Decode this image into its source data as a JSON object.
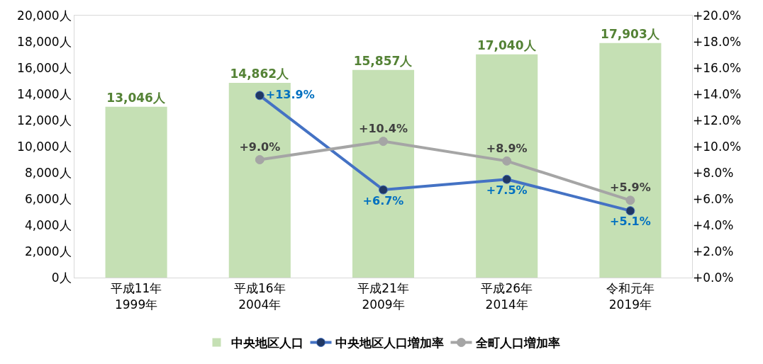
{
  "chart_data": {
    "type": "bar",
    "categories": [
      "平成11年\n1999年",
      "平成16年\n2004年",
      "平成21年\n2009年",
      "平成26年\n2014年",
      "令和元年\n2019年"
    ],
    "series": [
      {
        "name": "中央地区人口",
        "color": "#c5e0b4",
        "values": [
          13046,
          14862,
          15857,
          17040,
          17903
        ],
        "value_labels": [
          "13,046人",
          "14,862人",
          "15,857人",
          "17,040人",
          "17,903人"
        ]
      },
      {
        "type": "line",
        "name": "中央地区人口増加率",
        "color": "#4472c4",
        "axis": "y2",
        "values": [
          null,
          13.9,
          6.7,
          7.5,
          5.1
        ],
        "value_labels": [
          null,
          "+13.9%",
          "+6.7%",
          "+7.5%",
          "+5.1%"
        ]
      },
      {
        "type": "line",
        "name": "全町人口増加率",
        "color": "#a5a5a5",
        "axis": "y2",
        "values": [
          null,
          9.0,
          10.4,
          8.9,
          5.9
        ],
        "value_labels": [
          null,
          "+9.0%",
          "+10.4%",
          "+8.9%",
          "+5.9%"
        ]
      }
    ],
    "ylim": [
      0,
      20000
    ],
    "yticks": [
      {
        "value": 0,
        "label": "0人"
      },
      {
        "value": 2000,
        "label": "2,000人"
      },
      {
        "value": 4000,
        "label": "4,000人"
      },
      {
        "value": 6000,
        "label": "6,000人"
      },
      {
        "value": 8000,
        "label": "8,000人"
      },
      {
        "value": 10000,
        "label": "10,000人"
      },
      {
        "value": 12000,
        "label": "12,000人"
      },
      {
        "value": 14000,
        "label": "14,000人"
      },
      {
        "value": 16000,
        "label": "16,000人"
      },
      {
        "value": 18000,
        "label": "18,000人"
      },
      {
        "value": 20000,
        "label": "20,000人"
      }
    ],
    "y2lim": [
      0,
      20
    ],
    "y2ticks": [
      {
        "value": 0,
        "label": "+0.0%"
      },
      {
        "value": 2,
        "label": "+2.0%"
      },
      {
        "value": 4,
        "label": "+4.0%"
      },
      {
        "value": 6,
        "label": "+6.0%"
      },
      {
        "value": 8,
        "label": "+8.0%"
      },
      {
        "value": 10,
        "label": "+10.0%"
      },
      {
        "value": 12,
        "label": "+12.0%"
      },
      {
        "value": 14,
        "label": "+14.0%"
      },
      {
        "value": 16,
        "label": "+16.0%"
      },
      {
        "value": 18,
        "label": "+18.0%"
      },
      {
        "value": 20,
        "label": "+20.0%"
      }
    ],
    "grid": false,
    "legend": "bottom",
    "marker": "circle",
    "line_style": "solid"
  }
}
